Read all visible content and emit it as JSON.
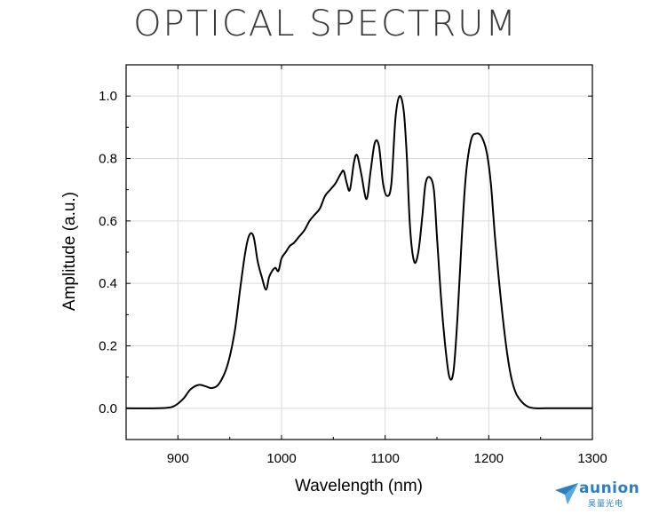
{
  "page": {
    "title": "OPTICAL SPECTRUM"
  },
  "logo": {
    "name": "aunion",
    "subtitle": "昊量光电",
    "color": "#2a7fc4"
  },
  "chart_data": {
    "type": "line",
    "title": "OPTICAL SPECTRUM",
    "xlabel": "Wavelength (nm)",
    "ylabel": "Amplitude (a.u.)",
    "xlim": [
      850,
      1300
    ],
    "ylim": [
      -0.1,
      1.1
    ],
    "xticks": [
      900,
      1000,
      1100,
      1200,
      1300
    ],
    "yticks": [
      0.0,
      0.2,
      0.4,
      0.6,
      0.8,
      1.0
    ],
    "xtick_labels": [
      "900",
      "1000",
      "1100",
      "1200",
      "1300"
    ],
    "ytick_labels": [
      "0.0",
      "0.2",
      "0.4",
      "0.6",
      "0.8",
      "1.0"
    ],
    "grid": true,
    "line_color": "#000000",
    "series": [
      {
        "x": [
          850,
          880,
          895,
          905,
          912,
          920,
          927,
          933,
          940,
          948,
          955,
          960,
          965,
          969,
          973,
          977,
          981,
          985,
          988,
          991,
          994,
          997,
          1000,
          1004,
          1008,
          1012,
          1017,
          1022,
          1027,
          1032,
          1037,
          1042,
          1047,
          1052,
          1057,
          1060,
          1063,
          1066,
          1070,
          1073,
          1077,
          1082,
          1086,
          1090,
          1094,
          1098,
          1102,
          1106,
          1110,
          1114,
          1118,
          1121,
          1124,
          1128,
          1132,
          1136,
          1139,
          1143,
          1147,
          1150,
          1154,
          1158,
          1162,
          1166,
          1170,
          1174,
          1178,
          1183,
          1188,
          1193,
          1198,
          1202,
          1206,
          1211,
          1216,
          1221,
          1226,
          1232,
          1238,
          1245,
          1255,
          1270,
          1300
        ],
        "y": [
          0.0,
          0.0,
          0.005,
          0.03,
          0.06,
          0.075,
          0.07,
          0.065,
          0.08,
          0.14,
          0.25,
          0.38,
          0.5,
          0.555,
          0.55,
          0.47,
          0.42,
          0.38,
          0.42,
          0.44,
          0.45,
          0.44,
          0.48,
          0.5,
          0.52,
          0.53,
          0.55,
          0.57,
          0.6,
          0.62,
          0.64,
          0.68,
          0.7,
          0.72,
          0.75,
          0.76,
          0.72,
          0.7,
          0.79,
          0.81,
          0.75,
          0.67,
          0.76,
          0.85,
          0.84,
          0.72,
          0.68,
          0.72,
          0.93,
          1.0,
          0.95,
          0.8,
          0.58,
          0.47,
          0.5,
          0.62,
          0.72,
          0.74,
          0.7,
          0.55,
          0.35,
          0.2,
          0.1,
          0.12,
          0.3,
          0.55,
          0.75,
          0.86,
          0.88,
          0.87,
          0.82,
          0.72,
          0.55,
          0.37,
          0.22,
          0.11,
          0.05,
          0.02,
          0.005,
          0.0,
          0.0,
          0.0,
          0.0
        ]
      }
    ]
  }
}
